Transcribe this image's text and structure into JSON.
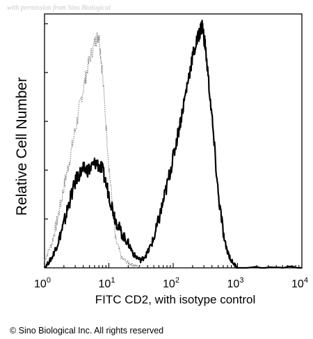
{
  "watermark": "with permission from Sino Biological",
  "copyright": "© Sino Biological Inc. All rights reserved",
  "chart_data": {
    "type": "line",
    "title": "",
    "xlabel": "FITC CD2, with isotype control",
    "ylabel": "Relative Cell Number",
    "xscale": "log",
    "xlim": [
      1,
      10000
    ],
    "ylim": [
      0,
      1
    ],
    "x_tick_labels": [
      {
        "value": 1,
        "base": "10",
        "exp": "0"
      },
      {
        "value": 10,
        "base": "10",
        "exp": "1"
      },
      {
        "value": 100,
        "base": "10",
        "exp": "2"
      },
      {
        "value": 1000,
        "base": "10",
        "exp": "3"
      },
      {
        "value": 10000,
        "base": "10",
        "exp": "4"
      }
    ],
    "grid": false,
    "legend": "none",
    "series": [
      {
        "role": "isotype control",
        "color": "#8a8a8a",
        "style": "dotted",
        "x": [
          1.0,
          1.3,
          1.6,
          2.0,
          2.5,
          3.2,
          4.0,
          5.0,
          6.3,
          7.0,
          7.9,
          10.0,
          12.6,
          15.8,
          20.0,
          25.1,
          31.6
        ],
        "y": [
          0.03,
          0.1,
          0.2,
          0.33,
          0.45,
          0.6,
          0.73,
          0.85,
          0.93,
          0.95,
          0.8,
          0.42,
          0.12,
          0.04,
          0.02,
          0.01,
          0.0
        ]
      },
      {
        "role": "FITC CD2",
        "color": "#000000",
        "style": "solid",
        "x": [
          1.0,
          1.3,
          1.6,
          2.0,
          2.5,
          3.2,
          4.0,
          5.0,
          6.3,
          7.9,
          10.0,
          12.6,
          15.8,
          20.0,
          25.1,
          31.6,
          39.8,
          50.1,
          63.1,
          79.4,
          100.0,
          125.9,
          158.5,
          199.5,
          251.2,
          281.8,
          316.2,
          398.1,
          501.2,
          631.0,
          794.3,
          1000.0,
          10000.0
        ],
        "y": [
          0.0,
          0.04,
          0.1,
          0.18,
          0.28,
          0.37,
          0.4,
          0.4,
          0.43,
          0.4,
          0.3,
          0.2,
          0.14,
          0.1,
          0.05,
          0.03,
          0.06,
          0.12,
          0.22,
          0.33,
          0.45,
          0.58,
          0.72,
          0.86,
          0.95,
          0.99,
          0.9,
          0.62,
          0.3,
          0.1,
          0.03,
          0.0,
          0.0
        ]
      }
    ]
  }
}
